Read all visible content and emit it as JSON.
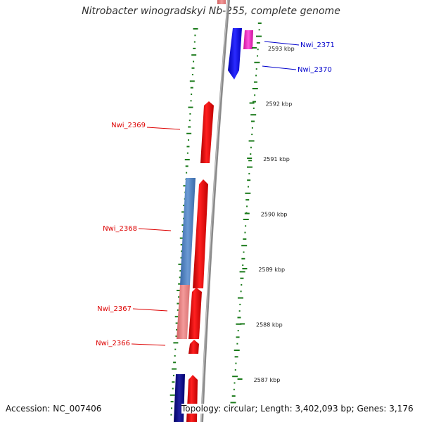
{
  "title": "Nitrobacter winogradskyi Nb-255, complete genome",
  "accession_text": "Accession: NC_007406",
  "summary_text": "Topology: circular; Length: 3,402,093 bp; Genes: 3,176",
  "colors": {
    "forward_gene": "#ff0000",
    "forward_gene_pale": "#f08080",
    "reverse_gene": "#1a1aff",
    "magenta_gene": "#ff33cc",
    "steelblue_feature": "#4a7ab8",
    "navy_feature": "#000080",
    "backbone": "#888888",
    "gc_ticks": "#1a7a1a",
    "red_label": "#dd0000",
    "blue_label": "#0000cc"
  },
  "scale_ticks": [
    {
      "label": "2593 kbp"
    },
    {
      "label": "2592 kbp"
    },
    {
      "label": "2591 kbp"
    },
    {
      "label": "2590 kbp"
    },
    {
      "label": "2589 kbp"
    },
    {
      "label": "2588 kbp"
    },
    {
      "label": "2587 kbp"
    }
  ],
  "gene_labels": [
    {
      "id": "Nwi_2371",
      "text": "Nwi_2371",
      "strand": "reverse"
    },
    {
      "id": "Nwi_2370",
      "text": "Nwi_2370",
      "strand": "reverse"
    },
    {
      "id": "Nwi_2369",
      "text": "Nwi_2369",
      "strand": "forward"
    },
    {
      "id": "Nwi_2368",
      "text": "Nwi_2368",
      "strand": "forward"
    },
    {
      "id": "Nwi_2367",
      "text": "Nwi_2367",
      "strand": "forward"
    },
    {
      "id": "Nwi_2366",
      "text": "Nwi_2366",
      "strand": "forward"
    }
  ]
}
